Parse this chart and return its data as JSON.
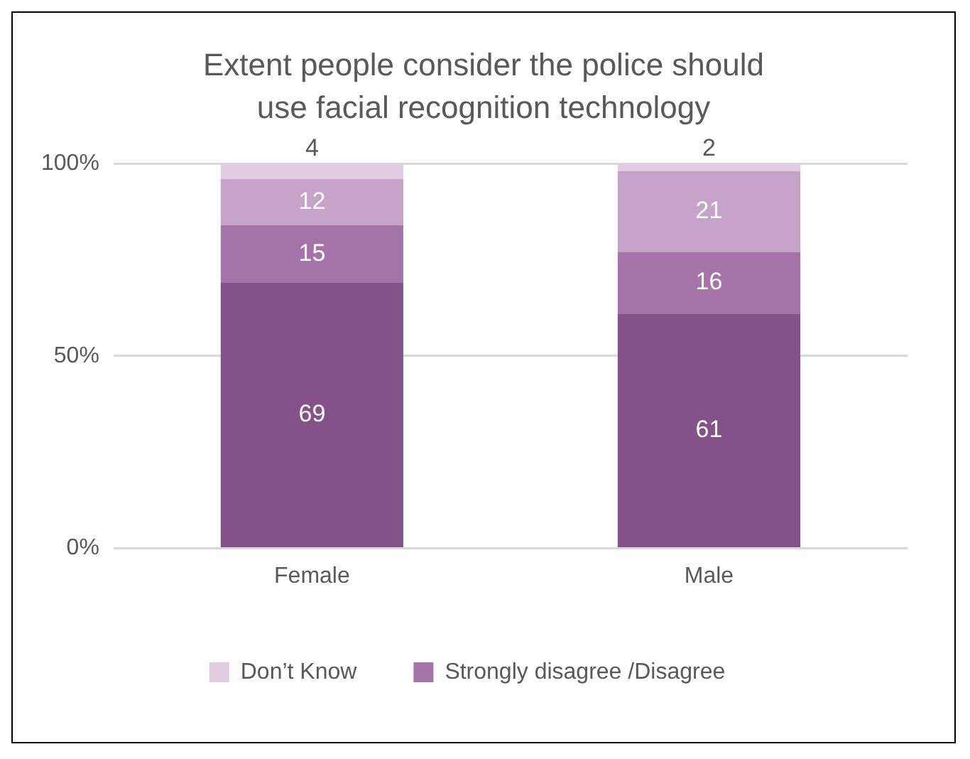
{
  "chart_data": {
    "type": "bar",
    "title": "Extent people consider the police should use facial recognition technology",
    "categories": [
      "Female",
      "Male"
    ],
    "stacked": true,
    "series": [
      {
        "color": "#845189",
        "values": [
          69,
          61
        ]
      },
      {
        "name": "Strongly disagree /Disagree",
        "color": "#a673a9",
        "values": [
          15,
          16
        ]
      },
      {
        "color": "#c6a3c8",
        "values": [
          12,
          21
        ]
      },
      {
        "name": "Don’t Know",
        "color": "#e1cde2",
        "values": [
          4,
          2
        ]
      }
    ],
    "ylim": [
      0,
      100
    ],
    "yticks": [
      {
        "value": 0,
        "label": "0%"
      },
      {
        "value": 50,
        "label": "50%"
      },
      {
        "value": 100,
        "label": "100%"
      }
    ],
    "grid": "y",
    "legend": "bottom",
    "data_labels": true
  }
}
